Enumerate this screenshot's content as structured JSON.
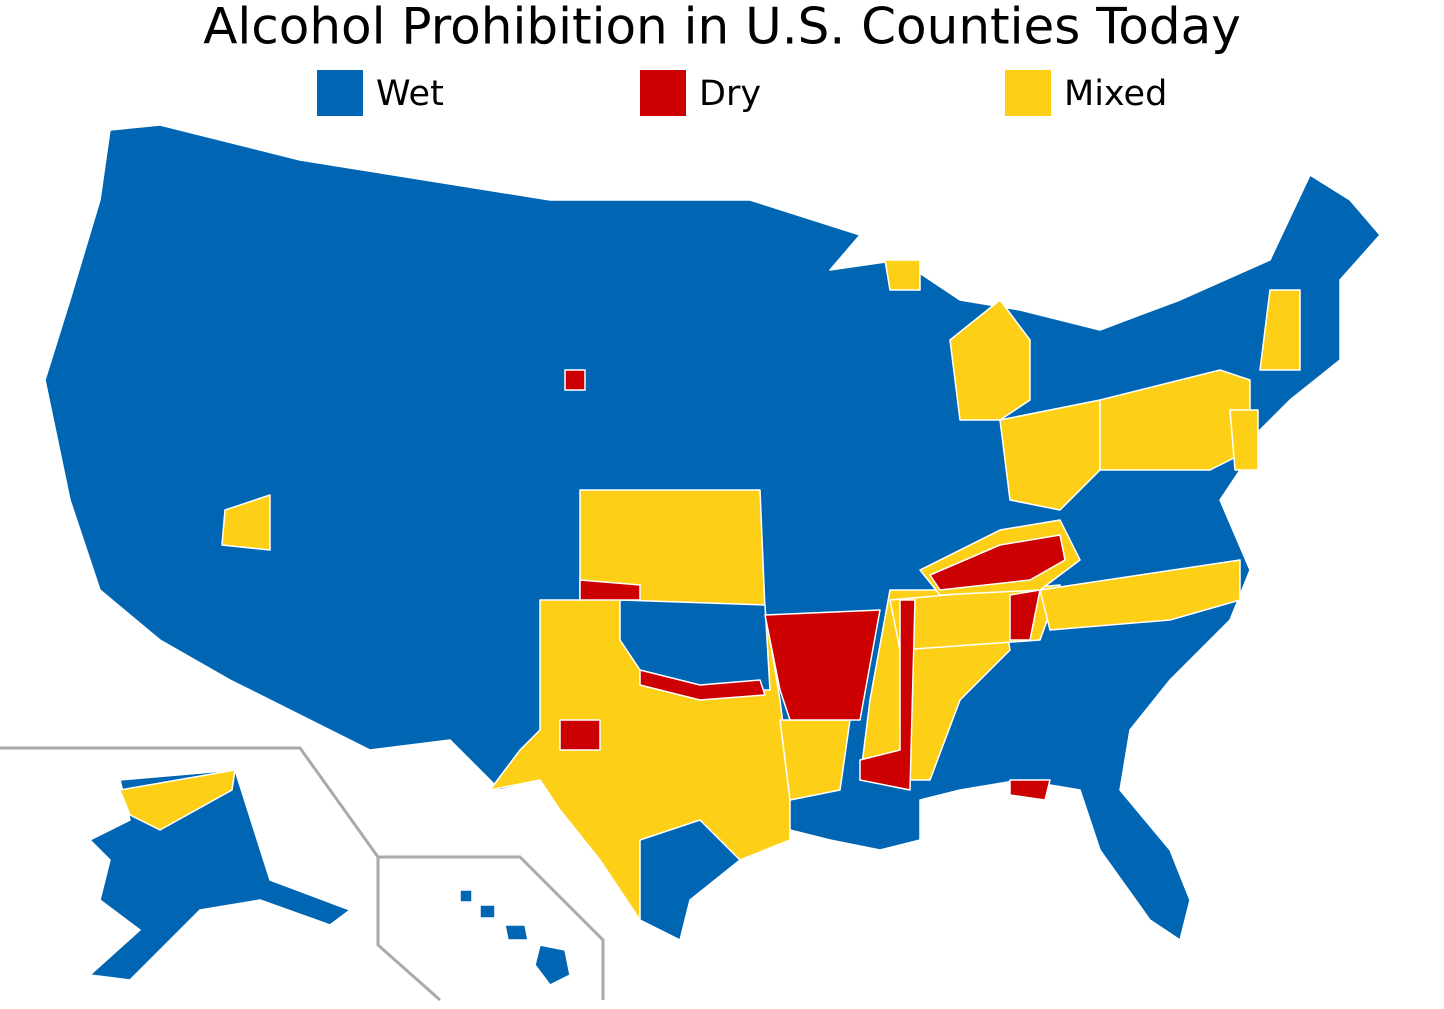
{
  "title": "Alcohol Prohibition in U.S. Counties Today",
  "legend": [
    {
      "label": "Wet",
      "color": "#0066b3"
    },
    {
      "label": "Dry",
      "color": "#cc0000"
    },
    {
      "label": "Mixed",
      "color": "#fdd017"
    }
  ]
}
